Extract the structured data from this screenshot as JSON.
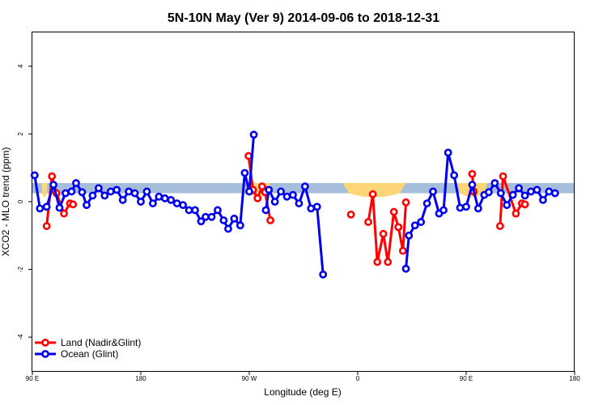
{
  "chart_data": {
    "type": "line",
    "title": "5N-10N May (Ver 9)   2014-09-06 to 2018-12-31",
    "xlabel": "Longitude (deg E)",
    "ylabel": "XCO2 - MLO trend (ppm)",
    "xlim": [
      90,
      450
    ],
    "ylim": [
      -5,
      5
    ],
    "x_ticks": [
      {
        "value": 90,
        "label": "90 E"
      },
      {
        "value": 162,
        "label": "180"
      },
      {
        "value": 234,
        "label": "90 W"
      },
      {
        "value": 306,
        "label": "0"
      },
      {
        "value": 378,
        "label": "90 E"
      },
      {
        "value": 450,
        "label": "180"
      }
    ],
    "y_ticks": [
      {
        "value": -4,
        "label": "-4"
      },
      {
        "value": -2,
        "label": "-2"
      },
      {
        "value": 0,
        "label": "0"
      },
      {
        "value": 2,
        "label": "2"
      },
      {
        "value": 4,
        "label": "4"
      }
    ],
    "grid": false,
    "legend": "bottom-left",
    "band": {
      "color": "#a6bddb",
      "y": [
        0.25,
        0.55
      ],
      "note_color": "#fdd777"
    },
    "land_bands": [
      {
        "x": [
          96,
          100
        ],
        "y": [
          0.25,
          0.55
        ]
      },
      {
        "x": [
          232,
          248
        ],
        "y": [
          0.25,
          0.55
        ]
      },
      {
        "x": [
          296,
          338
        ],
        "y": [
          0.25,
          0.55
        ]
      },
      {
        "x": [
          372,
          392
        ],
        "y": [
          0.25,
          0.55
        ]
      }
    ],
    "series": [
      {
        "name": "Land (Nadir&Glint)",
        "color": "#ff0000",
        "points": [
          [
            99.5,
            -0.72
          ],
          [
            103,
            0.75
          ],
          [
            106,
            0.25
          ],
          [
            111,
            -0.35
          ],
          [
            115,
            -0.05
          ],
          [
            117,
            -0.08
          ],
          null,
          [
            233.5,
            1.35
          ],
          [
            236.5,
            0.35
          ],
          [
            239.5,
            0.1
          ],
          [
            242.5,
            0.45
          ],
          [
            244.5,
            0.28
          ],
          [
            248,
            -0.55
          ],
          null,
          [
            301.5,
            -0.38
          ],
          null,
          [
            313,
            -0.6
          ],
          [
            316,
            0.22
          ],
          [
            319,
            -1.78
          ],
          [
            323,
            -0.95
          ],
          [
            326,
            -1.78
          ],
          [
            330,
            -0.3
          ],
          [
            333,
            -0.75
          ],
          [
            336,
            -1.45
          ],
          [
            338,
            -0.02
          ],
          null,
          [
            382,
            0.82
          ],
          [
            383,
            0.3
          ],
          null,
          [
            400.5,
            -0.72
          ],
          [
            402.5,
            0.75
          ],
          [
            411,
            -0.35
          ],
          [
            415,
            -0.05
          ],
          [
            417,
            -0.08
          ]
        ]
      },
      {
        "name": "Ocean (Glint)",
        "color": "#0000ee",
        "points": [
          [
            91.5,
            0.78
          ],
          [
            95,
            -0.2
          ],
          [
            99.5,
            -0.15
          ],
          [
            104,
            0.5
          ],
          [
            108,
            -0.18
          ],
          [
            112,
            0.25
          ],
          [
            116,
            0.3
          ],
          [
            119,
            0.55
          ],
          [
            123,
            0.28
          ],
          [
            126,
            -0.1
          ],
          [
            130,
            0.18
          ],
          [
            134,
            0.4
          ],
          [
            138,
            0.18
          ],
          [
            142,
            0.3
          ],
          [
            146,
            0.35
          ],
          [
            150,
            0.05
          ],
          [
            154,
            0.3
          ],
          [
            158,
            0.25
          ],
          [
            162,
            0.0
          ],
          [
            166,
            0.3
          ],
          [
            170,
            -0.05
          ],
          [
            174,
            0.15
          ],
          [
            178,
            0.1
          ],
          [
            182,
            0.05
          ],
          [
            186,
            -0.05
          ],
          [
            190,
            -0.1
          ],
          [
            194,
            -0.25
          ],
          [
            198,
            -0.25
          ],
          [
            202,
            -0.58
          ],
          [
            205,
            -0.45
          ],
          [
            209,
            -0.45
          ],
          [
            213,
            -0.25
          ],
          [
            217,
            -0.55
          ],
          [
            220,
            -0.8
          ],
          [
            224,
            -0.5
          ],
          [
            228,
            -0.7
          ],
          [
            231,
            0.85
          ],
          [
            234,
            0.3
          ],
          [
            237,
            1.98
          ],
          null,
          [
            245,
            -0.25
          ],
          [
            247,
            0.35
          ],
          [
            251,
            0.0
          ],
          [
            255,
            0.3
          ],
          [
            259,
            0.15
          ],
          [
            263,
            0.2
          ],
          [
            267,
            -0.05
          ],
          [
            271,
            0.45
          ],
          [
            275,
            -0.2
          ],
          [
            279,
            -0.15
          ],
          [
            283,
            -2.15
          ],
          null,
          [
            338,
            -1.98
          ],
          [
            340,
            -1.0
          ],
          [
            344,
            -0.7
          ],
          [
            348,
            -0.6
          ],
          [
            352,
            -0.05
          ],
          [
            356,
            0.3
          ],
          [
            360,
            -0.35
          ],
          [
            363,
            -0.25
          ],
          [
            366,
            1.45
          ],
          [
            370,
            0.78
          ],
          [
            374,
            -0.18
          ],
          [
            378,
            -0.15
          ],
          [
            382,
            0.5
          ],
          [
            386,
            -0.2
          ],
          [
            390,
            0.2
          ],
          [
            393,
            0.28
          ],
          [
            397,
            0.55
          ],
          [
            401,
            0.25
          ],
          [
            405,
            -0.1
          ],
          [
            409,
            0.2
          ],
          [
            413,
            0.4
          ],
          [
            417,
            0.18
          ],
          [
            421,
            0.3
          ],
          [
            425,
            0.35
          ],
          [
            429,
            0.05
          ],
          [
            433,
            0.3
          ],
          [
            437,
            0.25
          ]
        ]
      }
    ]
  }
}
